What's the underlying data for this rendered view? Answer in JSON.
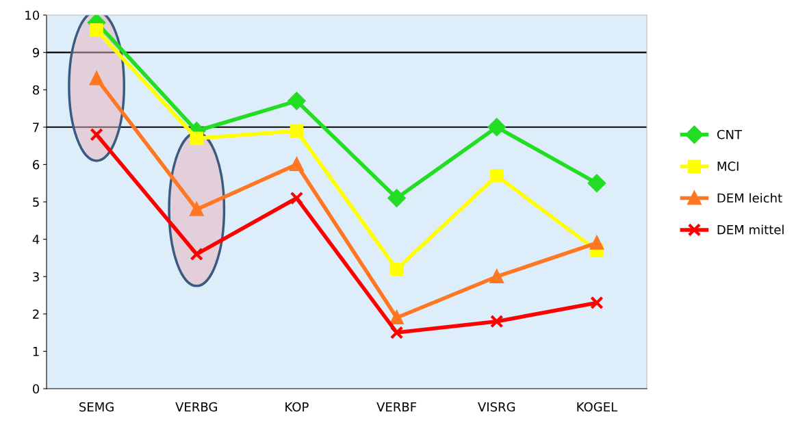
{
  "chart_data": {
    "type": "line",
    "categories": [
      "SEMG",
      "VERBG",
      "KOP",
      "VERBF",
      "VISRG",
      "KOGEL"
    ],
    "series": [
      {
        "name": "CNT",
        "color": "#22dd22",
        "marker": "diamond",
        "values": [
          9.8,
          6.9,
          7.7,
          5.1,
          7.0,
          5.5
        ]
      },
      {
        "name": "MCI",
        "color": "#ffff00",
        "marker": "square",
        "values": [
          9.6,
          6.7,
          6.9,
          3.2,
          5.7,
          3.7
        ]
      },
      {
        "name": "DEM leicht",
        "color": "#ff7722",
        "marker": "triangle",
        "values": [
          8.3,
          4.8,
          6.0,
          1.9,
          3.0,
          3.9
        ]
      },
      {
        "name": "DEM mittel",
        "color": "#ff0000",
        "marker": "cross",
        "values": [
          6.8,
          3.6,
          5.1,
          1.5,
          1.8,
          2.3
        ]
      }
    ],
    "ylim": [
      0,
      10
    ],
    "yticks": [
      0,
      1,
      2,
      3,
      4,
      5,
      6,
      7,
      8,
      9,
      10
    ],
    "ref_lines": [
      {
        "axis": "y",
        "value": 7,
        "label": null,
        "color": "#000000"
      },
      {
        "axis": "y",
        "value": 9,
        "label": null,
        "color": "#000000"
      }
    ],
    "grid": false,
    "legend": "right",
    "line_style": "solid"
  }
}
